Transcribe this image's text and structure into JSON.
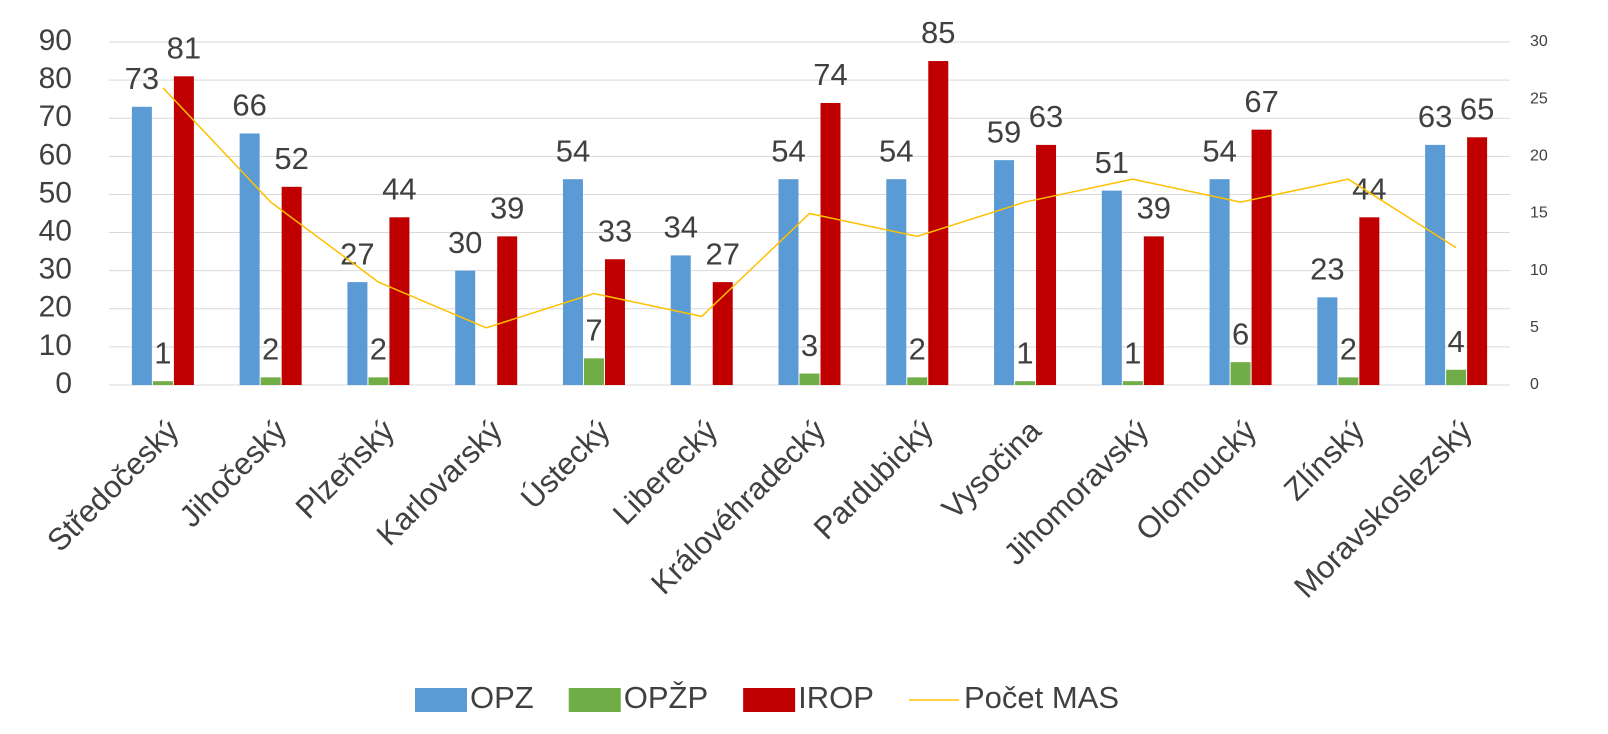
{
  "chart_data": {
    "type": "bar",
    "categories": [
      "Středočeský",
      "Jihočeský",
      "Plzeňský",
      "Karlovarský",
      "Ústecký",
      "Liberecký",
      "Královéhradecký",
      "Pardubický",
      "Vysočina",
      "Jihomoravský",
      "Olomoucký",
      "Zlínský",
      "Moravskoslezský"
    ],
    "series": [
      {
        "name": "OPZ",
        "color": "#5b9bd5",
        "values": [
          73,
          66,
          27,
          30,
          54,
          34,
          54,
          54,
          59,
          51,
          54,
          23,
          63
        ]
      },
      {
        "name": "OPŽP",
        "color": "#70ad47",
        "values": [
          1,
          2,
          2,
          null,
          7,
          null,
          3,
          2,
          1,
          1,
          6,
          2,
          4
        ]
      },
      {
        "name": "IROP",
        "color": "#c00000",
        "values": [
          81,
          52,
          44,
          39,
          33,
          27,
          74,
          85,
          63,
          39,
          67,
          44,
          65
        ]
      },
      {
        "name": "Počet MAS",
        "color": "#ffc000",
        "type": "line",
        "axis": "y2",
        "values": [
          26,
          16,
          9,
          5,
          8,
          6,
          15,
          13,
          16,
          18,
          16,
          18,
          12
        ]
      }
    ],
    "ylim": [
      0,
      90
    ],
    "yticks": [
      0,
      10,
      20,
      30,
      40,
      50,
      60,
      70,
      80,
      90
    ],
    "y2lim": [
      0,
      30
    ],
    "y2ticks": [
      0,
      5,
      10,
      15,
      20,
      25,
      30
    ],
    "grid": true,
    "legend": "bottom"
  }
}
